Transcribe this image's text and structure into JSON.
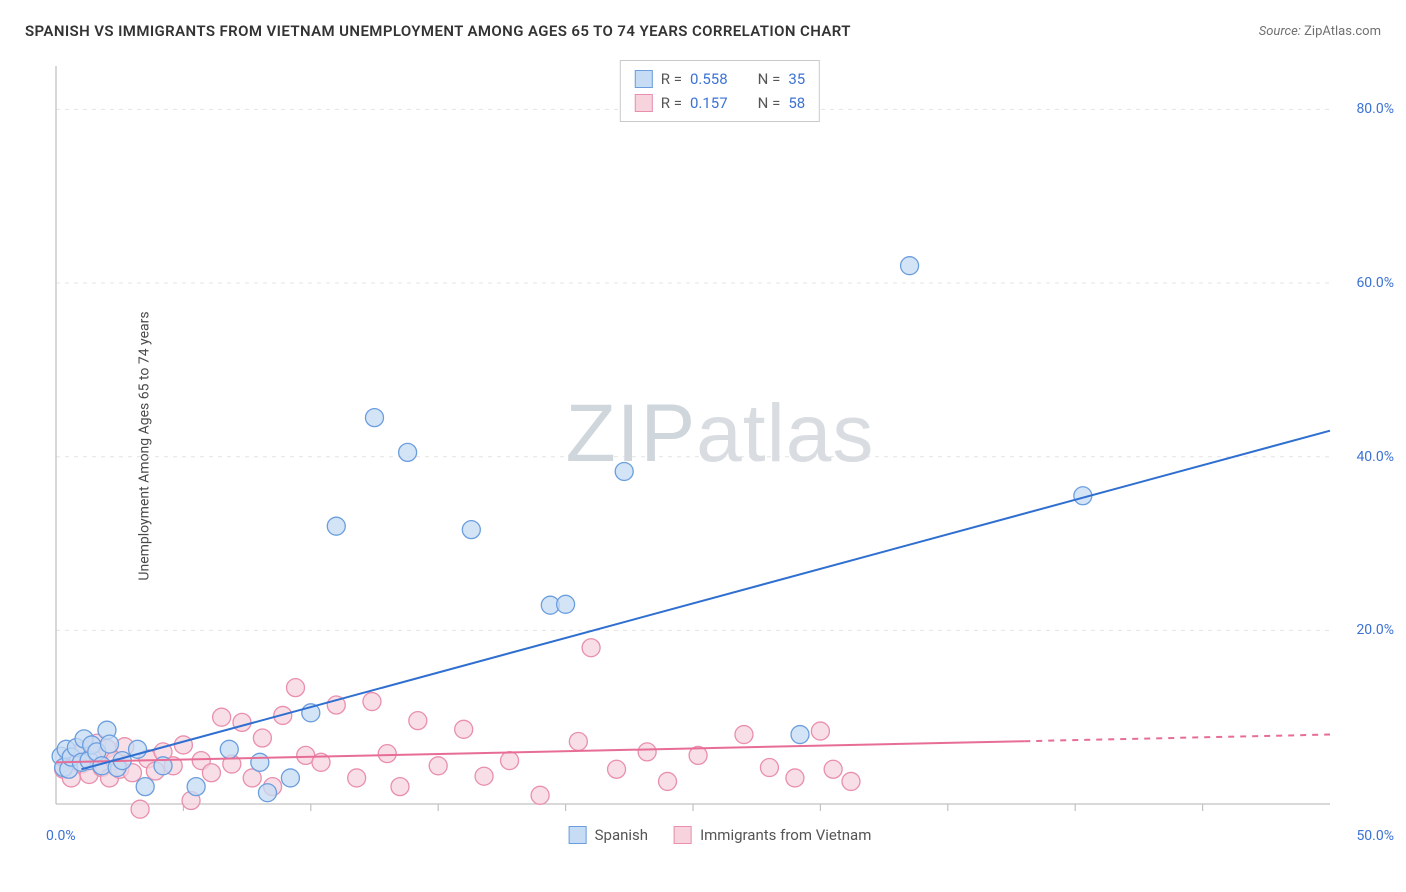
{
  "title": "SPANISH VS IMMIGRANTS FROM VIETNAM UNEMPLOYMENT AMONG AGES 65 TO 74 YEARS CORRELATION CHART",
  "source_label": "Source:",
  "source_value": "ZipAtlas.com",
  "y_axis_label": "Unemployment Among Ages 65 to 74 years",
  "watermark": {
    "part1": "ZIP",
    "part2": "atlas"
  },
  "chart": {
    "type": "scatter",
    "background_color": "#ffffff",
    "grid_color": "#e4e4e4",
    "axis_color": "#c2c2c2",
    "tick_label_color": "#3b72d4",
    "x_range": [
      0,
      50
    ],
    "y_range": [
      0,
      85
    ],
    "x_ticks_labeled": [
      {
        "v": 0,
        "label": "0.0%"
      },
      {
        "v": 50,
        "label": "50.0%"
      }
    ],
    "x_ticks_minor": [
      5,
      10,
      15,
      20,
      25,
      30,
      35,
      40,
      45
    ],
    "y_ticks_labeled": [
      {
        "v": 20,
        "label": "20.0%"
      },
      {
        "v": 40,
        "label": "40.0%"
      },
      {
        "v": 60,
        "label": "60.0%"
      },
      {
        "v": 80,
        "label": "80.0%"
      }
    ],
    "series": [
      {
        "key": "spanish",
        "label": "Spanish",
        "marker_fill": "#c6dbf4",
        "marker_stroke": "#6b9ede",
        "line_color": "#2f6fd0",
        "line_width": 2,
        "marker_radius": 9,
        "R_label": "R =",
        "R_value": "0.558",
        "N_label": "N =",
        "N_value": "35",
        "trend": {
          "x1": 1,
          "y1": 4,
          "x2": 50,
          "y2": 43,
          "solid_until_x": 50
        },
        "points": [
          [
            0.2,
            5.5
          ],
          [
            0.3,
            4.2
          ],
          [
            0.4,
            6.3
          ],
          [
            0.5,
            4.0
          ],
          [
            0.6,
            5.4
          ],
          [
            0.8,
            6.5
          ],
          [
            1.0,
            4.8
          ],
          [
            1.1,
            7.5
          ],
          [
            1.3,
            5.0
          ],
          [
            1.4,
            6.8
          ],
          [
            1.6,
            6.0
          ],
          [
            1.8,
            4.4
          ],
          [
            2.0,
            8.5
          ],
          [
            2.1,
            6.9
          ],
          [
            2.4,
            4.2
          ],
          [
            2.6,
            5.0
          ],
          [
            3.2,
            6.3
          ],
          [
            3.5,
            2.0
          ],
          [
            4.2,
            4.4
          ],
          [
            5.5,
            2.0
          ],
          [
            6.8,
            6.3
          ],
          [
            8.0,
            4.8
          ],
          [
            8.3,
            1.3
          ],
          [
            9.2,
            3.0
          ],
          [
            10.0,
            10.5
          ],
          [
            11.0,
            32.0
          ],
          [
            12.5,
            44.5
          ],
          [
            13.8,
            40.5
          ],
          [
            16.3,
            31.6
          ],
          [
            19.4,
            22.9
          ],
          [
            20.0,
            23.0
          ],
          [
            22.3,
            38.3
          ],
          [
            29.2,
            8.0
          ],
          [
            33.5,
            62.0
          ],
          [
            40.3,
            35.5
          ]
        ]
      },
      {
        "key": "vietnam",
        "label": "Immigrants from Vietnam",
        "marker_fill": "#f6d3dd",
        "marker_stroke": "#e98fad",
        "line_color": "#e76d95",
        "line_width": 2,
        "marker_radius": 9,
        "R_label": "R =",
        "R_value": "0.157",
        "N_label": "N =",
        "N_value": "58",
        "trend": {
          "x1": 0,
          "y1": 4.8,
          "x2": 50,
          "y2": 8.0,
          "solid_until_x": 38
        },
        "points": [
          [
            0.3,
            4.0
          ],
          [
            0.5,
            5.2
          ],
          [
            0.6,
            3.0
          ],
          [
            0.8,
            5.8
          ],
          [
            1.0,
            4.6
          ],
          [
            1.1,
            6.2
          ],
          [
            1.3,
            3.4
          ],
          [
            1.5,
            5.6
          ],
          [
            1.6,
            7.0
          ],
          [
            1.8,
            4.2
          ],
          [
            2.0,
            6.4
          ],
          [
            2.1,
            3.0
          ],
          [
            2.3,
            5.0
          ],
          [
            2.5,
            4.0
          ],
          [
            2.7,
            6.6
          ],
          [
            3.0,
            3.6
          ],
          [
            3.3,
            -0.6
          ],
          [
            3.6,
            5.2
          ],
          [
            3.9,
            3.8
          ],
          [
            4.2,
            6.0
          ],
          [
            4.6,
            4.4
          ],
          [
            5.0,
            6.8
          ],
          [
            5.3,
            0.4
          ],
          [
            5.7,
            5.0
          ],
          [
            6.1,
            3.6
          ],
          [
            6.5,
            10.0
          ],
          [
            6.9,
            4.6
          ],
          [
            7.3,
            9.4
          ],
          [
            7.7,
            3.0
          ],
          [
            8.1,
            7.6
          ],
          [
            8.5,
            2.0
          ],
          [
            8.9,
            10.2
          ],
          [
            9.4,
            13.4
          ],
          [
            9.8,
            5.6
          ],
          [
            10.4,
            4.8
          ],
          [
            11.0,
            11.4
          ],
          [
            11.8,
            3.0
          ],
          [
            12.4,
            11.8
          ],
          [
            13.0,
            5.8
          ],
          [
            13.5,
            2.0
          ],
          [
            14.2,
            9.6
          ],
          [
            15.0,
            4.4
          ],
          [
            16.0,
            8.6
          ],
          [
            16.8,
            3.2
          ],
          [
            17.8,
            5.0
          ],
          [
            19.0,
            1.0
          ],
          [
            20.5,
            7.2
          ],
          [
            21.0,
            18.0
          ],
          [
            22.0,
            4.0
          ],
          [
            23.2,
            6.0
          ],
          [
            24.0,
            2.6
          ],
          [
            25.2,
            5.6
          ],
          [
            27.0,
            8.0
          ],
          [
            28.0,
            4.2
          ],
          [
            29.0,
            3.0
          ],
          [
            30.0,
            8.4
          ],
          [
            30.5,
            4.0
          ],
          [
            31.2,
            2.6
          ]
        ]
      }
    ]
  }
}
